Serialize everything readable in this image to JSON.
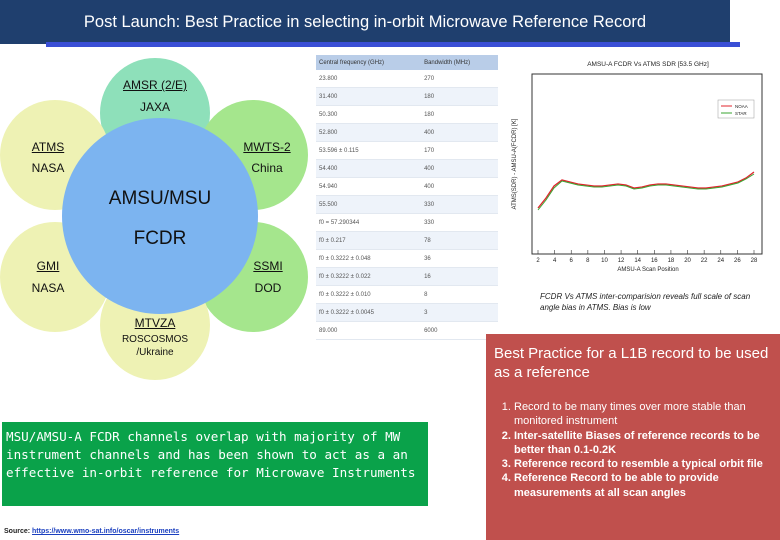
{
  "title": "Post Launch:  Best Practice in selecting in-orbit Microwave Reference Record",
  "diagram": {
    "center": {
      "title": "AMSU/MSU",
      "subtitle": "FCDR"
    },
    "nodes": [
      {
        "id": "amsr",
        "name": "AMSR (2/E)",
        "agency": "JAXA",
        "color": "#8ee0ba"
      },
      {
        "id": "mwts",
        "name": "MWTS-2",
        "agency": "China",
        "color": "#a5e68d"
      },
      {
        "id": "ssmi",
        "name": "SSMI",
        "agency": "DOD",
        "color": "#a5e68d"
      },
      {
        "id": "mtvza",
        "name": "MTVZA",
        "agency": "ROSCOSMOS /Ukraine",
        "color": "#eef2b4"
      },
      {
        "id": "gmi",
        "name": "GMI",
        "agency": "NASA",
        "color": "#eef2b4"
      },
      {
        "id": "atms",
        "name": "ATMS",
        "agency": "NASA",
        "color": "#eef2b4"
      }
    ],
    "center_color": "#7cb4f0"
  },
  "table": {
    "headers": [
      "Central frequency (GHz)",
      "Bandwidth (MHz)"
    ],
    "rows": [
      [
        "23.800",
        "270"
      ],
      [
        "31.400",
        "180"
      ],
      [
        "50.300",
        "180"
      ],
      [
        "52.800",
        "400"
      ],
      [
        "53.596 ± 0.115",
        "170"
      ],
      [
        "54.400",
        "400"
      ],
      [
        "54.940",
        "400"
      ],
      [
        "55.500",
        "330"
      ],
      [
        "f0 = 57.290344",
        "330"
      ],
      [
        "f0 ± 0.217",
        "78"
      ],
      [
        "f0 ± 0.3222 ± 0.048",
        "36"
      ],
      [
        "f0 ± 0.3222 ± 0.022",
        "16"
      ],
      [
        "f0 ± 0.3222 ± 0.010",
        "8"
      ],
      [
        "f0 ± 0.3222 ± 0.0045",
        "3"
      ],
      [
        "89.000",
        "6000"
      ]
    ]
  },
  "plot": {
    "title": "AMSU-A FCDR Vs ATMS SDR [53.5 GHz]",
    "ylabel": "ATMS(SDR) - AMSU-A(FCDR) [K]",
    "xlabel": "AMSU-A Scan Position",
    "x_ticks": [
      "2",
      "4",
      "6",
      "8",
      "10",
      "12",
      "14",
      "16",
      "18",
      "20",
      "22",
      "24",
      "26",
      "28"
    ],
    "series": [
      {
        "name": "NOAA",
        "color": "#e0242d"
      },
      {
        "name": "STAR",
        "color": "#3aa632"
      }
    ]
  },
  "caption": "FCDR  Vs ATMS inter-comparision reveals full scale of scan angle bias in ATMS. Bias is low",
  "practice": {
    "heading": "Best Practice for a L1B record to be used as a reference",
    "items": [
      "Record to be many times over more stable than monitored instrument",
      "Inter-satellite Biases of reference records to be better than 0.1-0.2K",
      "Reference record to resemble a typical orbit file",
      "Reference Record to be able to provide measurements at all scan angles"
    ]
  },
  "summary": "MSU/AMSU-A FCDR channels overlap with majority of MW instrument channels and has been shown to act as a an effective in-orbit reference for Microwave Instruments",
  "source": {
    "label": "Source:",
    "url": "https://www.wmo-sat.info/oscar/instruments"
  }
}
